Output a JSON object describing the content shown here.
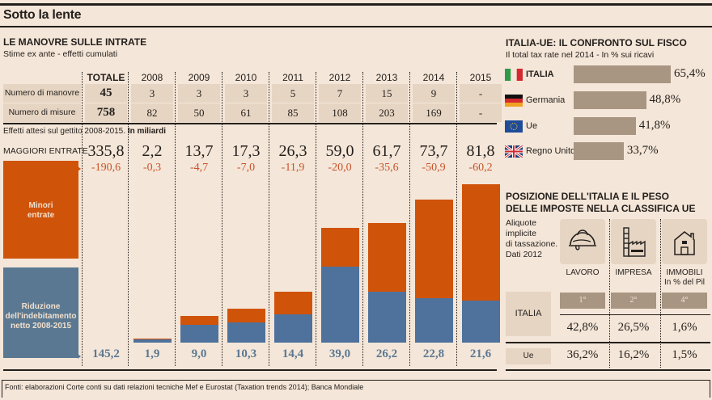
{
  "header": {
    "title": "Sotto la lente"
  },
  "left": {
    "title": "LE MANOVRE SULLE INTRATE",
    "subtitle": "Stime ex ante - effetti cumulati",
    "columns": [
      "TOTALE",
      "2008",
      "2009",
      "2010",
      "2011",
      "2012",
      "2013",
      "2014",
      "2015"
    ],
    "rows": [
      {
        "label": "Numero di manovre",
        "values": [
          "45",
          "3",
          "3",
          "3",
          "5",
          "7",
          "15",
          "9",
          "-"
        ]
      },
      {
        "label": "Numero di misure",
        "values": [
          "758",
          "82",
          "50",
          "61",
          "85",
          "108",
          "203",
          "169",
          "-"
        ]
      }
    ],
    "effects_note": "Effetti attesi sul gettito 2008-2015.",
    "effects_unit": "In miliardi",
    "maggiori_label": "MAGGIORI ENTRATE",
    "legend_minori": [
      "Minori",
      "entrate"
    ],
    "legend_riduzione": [
      "Riduzione",
      "dell'indebitamento",
      "netto 2008-2015"
    ],
    "colors": {
      "minori": "#d0530a",
      "riduzione": "#4e729c",
      "legend_riduzione": "#5a7891"
    }
  },
  "chart_data": {
    "type": "bar",
    "stacked": true,
    "title": "LE MANOVRE SULLE INTRATE",
    "subtitle": "Effetti attesi sul gettito 2008-2015. In miliardi",
    "categories": [
      "TOTALE",
      "2008",
      "2009",
      "2010",
      "2011",
      "2012",
      "2013",
      "2014",
      "2015"
    ],
    "maggiori_entrate": [
      "335,8",
      "2,2",
      "13,7",
      "17,3",
      "26,3",
      "59,0",
      "61,7",
      "73,7",
      "81,8"
    ],
    "series": [
      {
        "name": "Riduzione dell'indebitamento netto 2008-2015",
        "labels": [
          "145,2",
          "1,9",
          "9,0",
          "10,3",
          "14,4",
          "39,0",
          "26,2",
          "22,8",
          "21,6"
        ],
        "values": [
          145.2,
          1.9,
          9.0,
          10.3,
          14.4,
          39.0,
          26.2,
          22.8,
          21.6
        ]
      },
      {
        "name": "Minori entrate",
        "labels": [
          "-190,6",
          "-0,3",
          "-4,7",
          "-7,0",
          "-11,9",
          "-20,0",
          "-35,6",
          "-50,9",
          "-60,2"
        ],
        "values": [
          190.6,
          0.3,
          4.7,
          7.0,
          11.9,
          20.0,
          35.6,
          50.9,
          60.2
        ]
      }
    ],
    "bar_categories": [
      "2008",
      "2009",
      "2010",
      "2011",
      "2012",
      "2013",
      "2014",
      "2015"
    ],
    "ylim": [
      0,
      85
    ]
  },
  "tax_rate": {
    "title": "ITALIA-UE: IL CONFRONTO SUL FISCO",
    "subtitle": "Il  total tax rate nel 2014 - In % sui ricavi",
    "items": [
      {
        "country": "ITALIA",
        "flag": "italy-flag",
        "value": 65.4,
        "label": "65,4%"
      },
      {
        "country": "Germania",
        "flag": "germany-flag",
        "value": 48.8,
        "label": "48,8%"
      },
      {
        "country": "Ue",
        "flag": "eu-flag",
        "value": 41.8,
        "label": "41,8%"
      },
      {
        "country": "Regno Unito",
        "flag": "uk-flag",
        "value": 33.7,
        "label": "33,7%"
      }
    ]
  },
  "position": {
    "title_1": "POSIZIONE DELL'ITALIA E IL PESO",
    "title_2": "DELLE IMPOSTE NELLA CLASSIFICA UE",
    "note": [
      "Aliquote",
      "implicite",
      "di tassazione.",
      "Dati 2012"
    ],
    "categories": [
      {
        "label": "LAVORO",
        "sublabel": "",
        "icon": "helmet-icon",
        "rank": "1°",
        "italia": "42,8%",
        "ue": "36,2%"
      },
      {
        "label": "IMPRESA",
        "sublabel": "",
        "icon": "factory-icon",
        "rank": "2°",
        "italia": "26,5%",
        "ue": "16,2%"
      },
      {
        "label": "IMMOBILI",
        "sublabel": "In % del Pil",
        "icon": "house-icon",
        "rank": "4°",
        "italia": "1,6%",
        "ue": "1,5%"
      }
    ],
    "row_italia": "ITALIA",
    "row_ue": "Ue"
  },
  "footer": {
    "source": "Fonti: elaborazioni Corte conti su dati relazioni tecniche Mef e Eurostat (Taxation trends 2014); Banca Mondiale"
  }
}
